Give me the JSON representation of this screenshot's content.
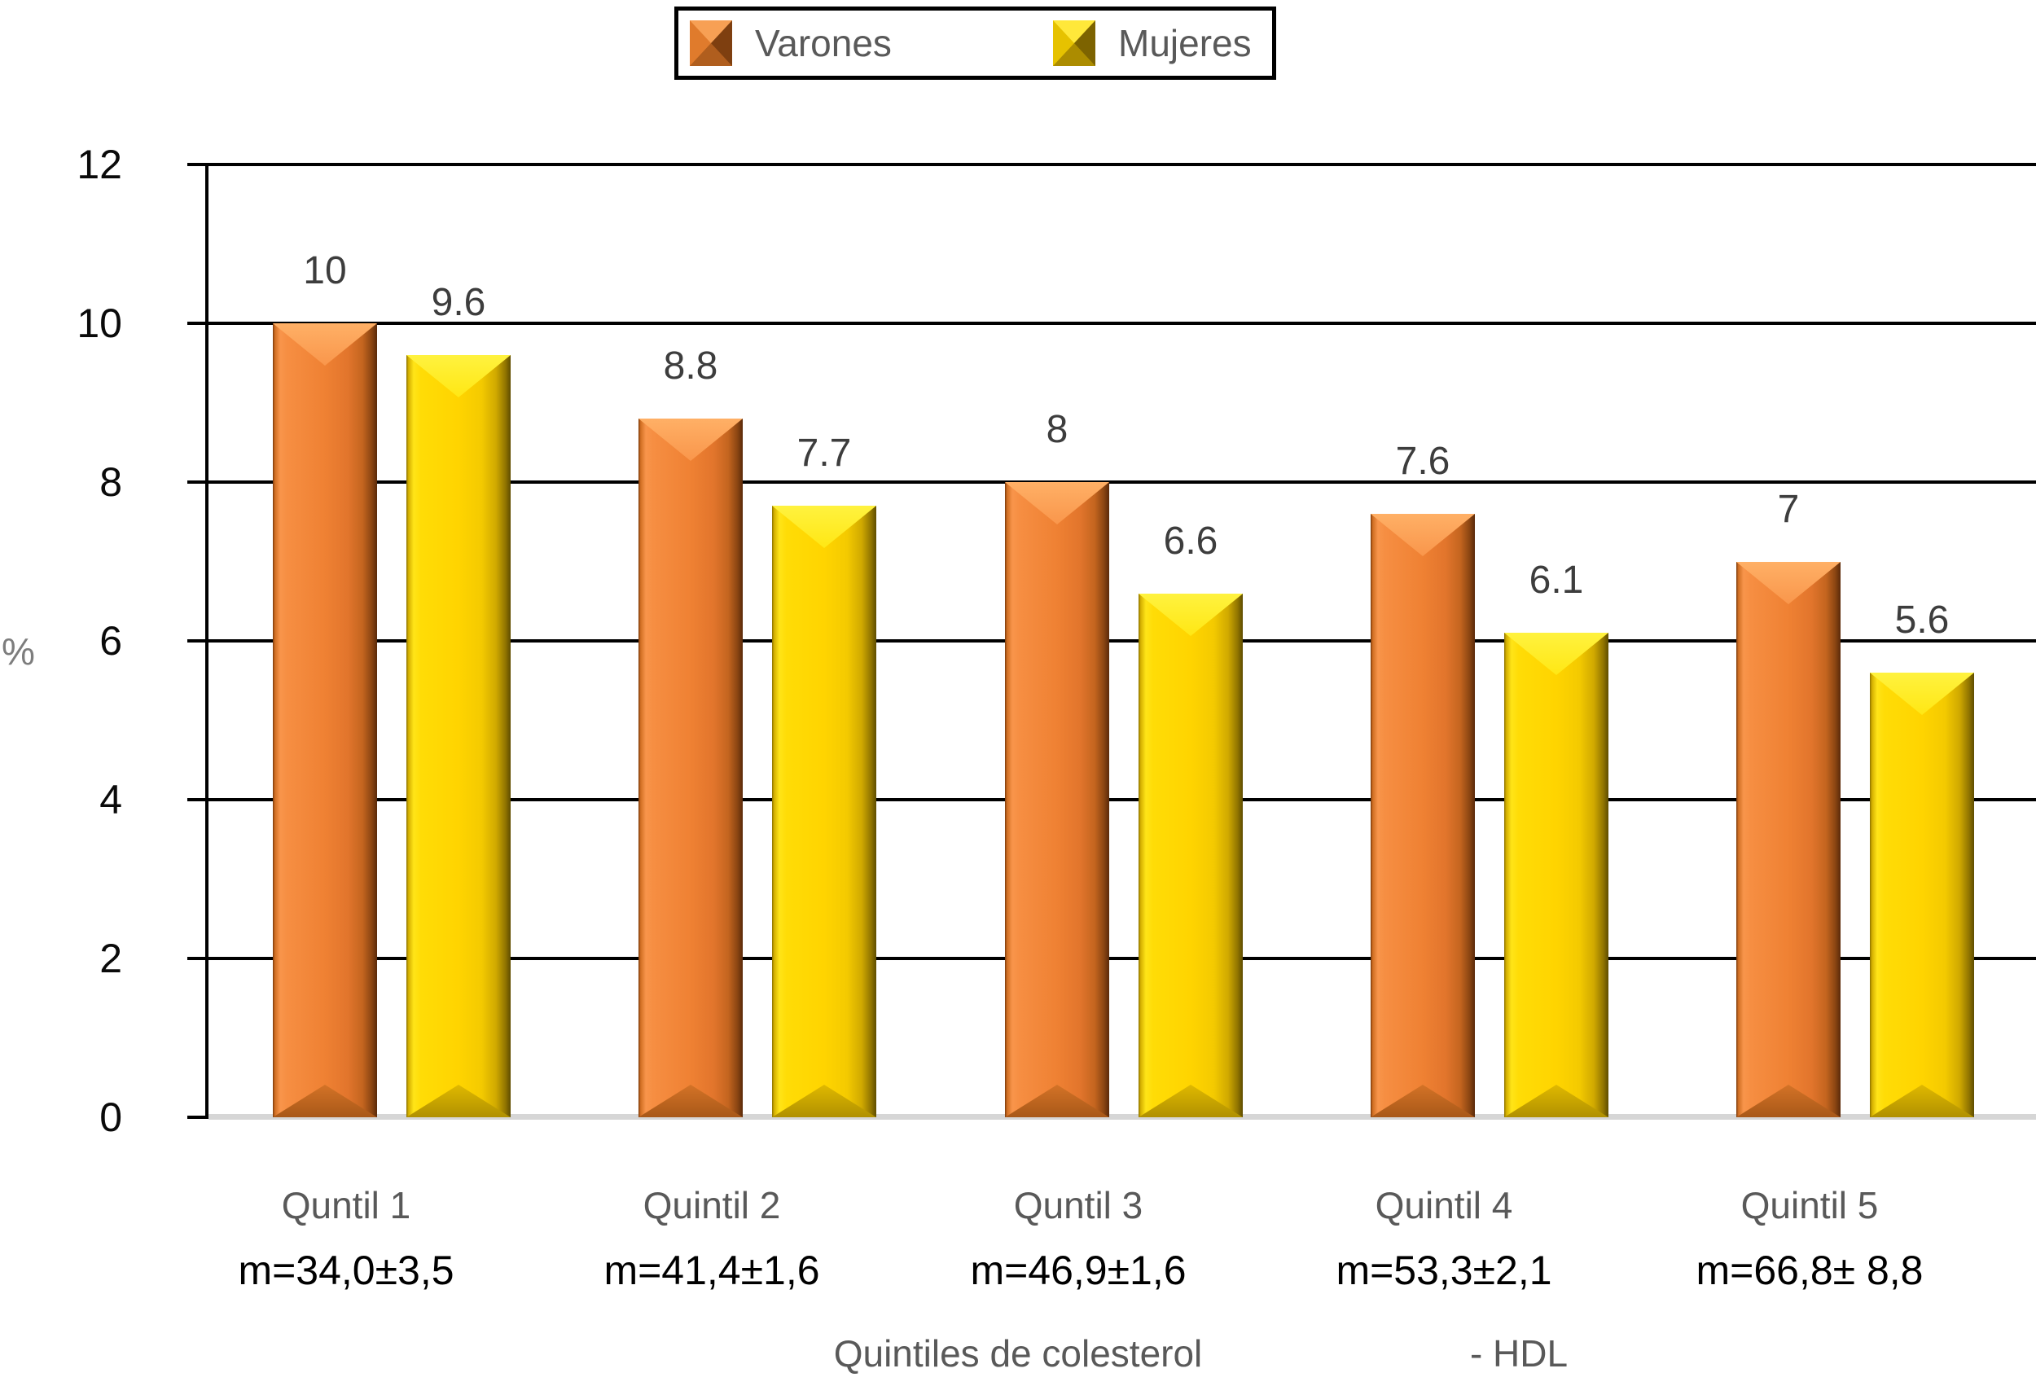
{
  "chart_data": {
    "type": "bar",
    "title": "",
    "ylabel": "%",
    "ylim": [
      0,
      12
    ],
    "yticks": [
      12,
      10,
      8,
      6,
      4,
      2,
      0
    ],
    "grid": "horizontal-black-lines",
    "legend_position": "top-center",
    "xlabel_parts": [
      "Quintiles de colesterol",
      "- HDL"
    ],
    "categories": [
      "Quntil 1",
      "Quintil 2",
      "Quntil 3",
      "Quintil 4",
      "Quintil 5"
    ],
    "category_sublabels": [
      "m=34,0±3,5",
      "m=41,4±1,6",
      "m=46,9±1,6",
      "m=53,3±2,1",
      "m=66,8± 8,8"
    ],
    "series": [
      {
        "name": "Varones",
        "color": "#EF8133",
        "values": [
          10,
          8.8,
          8,
          7.6,
          7
        ],
        "display_labels": [
          "10",
          "8.8",
          "8",
          "7.6",
          "7"
        ]
      },
      {
        "name": "Mujeres",
        "color": "#FFD400",
        "values": [
          9.6,
          7.7,
          6.6,
          6.1,
          5.6
        ],
        "display_labels": [
          "9.6",
          "7.7",
          "6.6",
          "6.1",
          "5.6"
        ]
      }
    ]
  }
}
